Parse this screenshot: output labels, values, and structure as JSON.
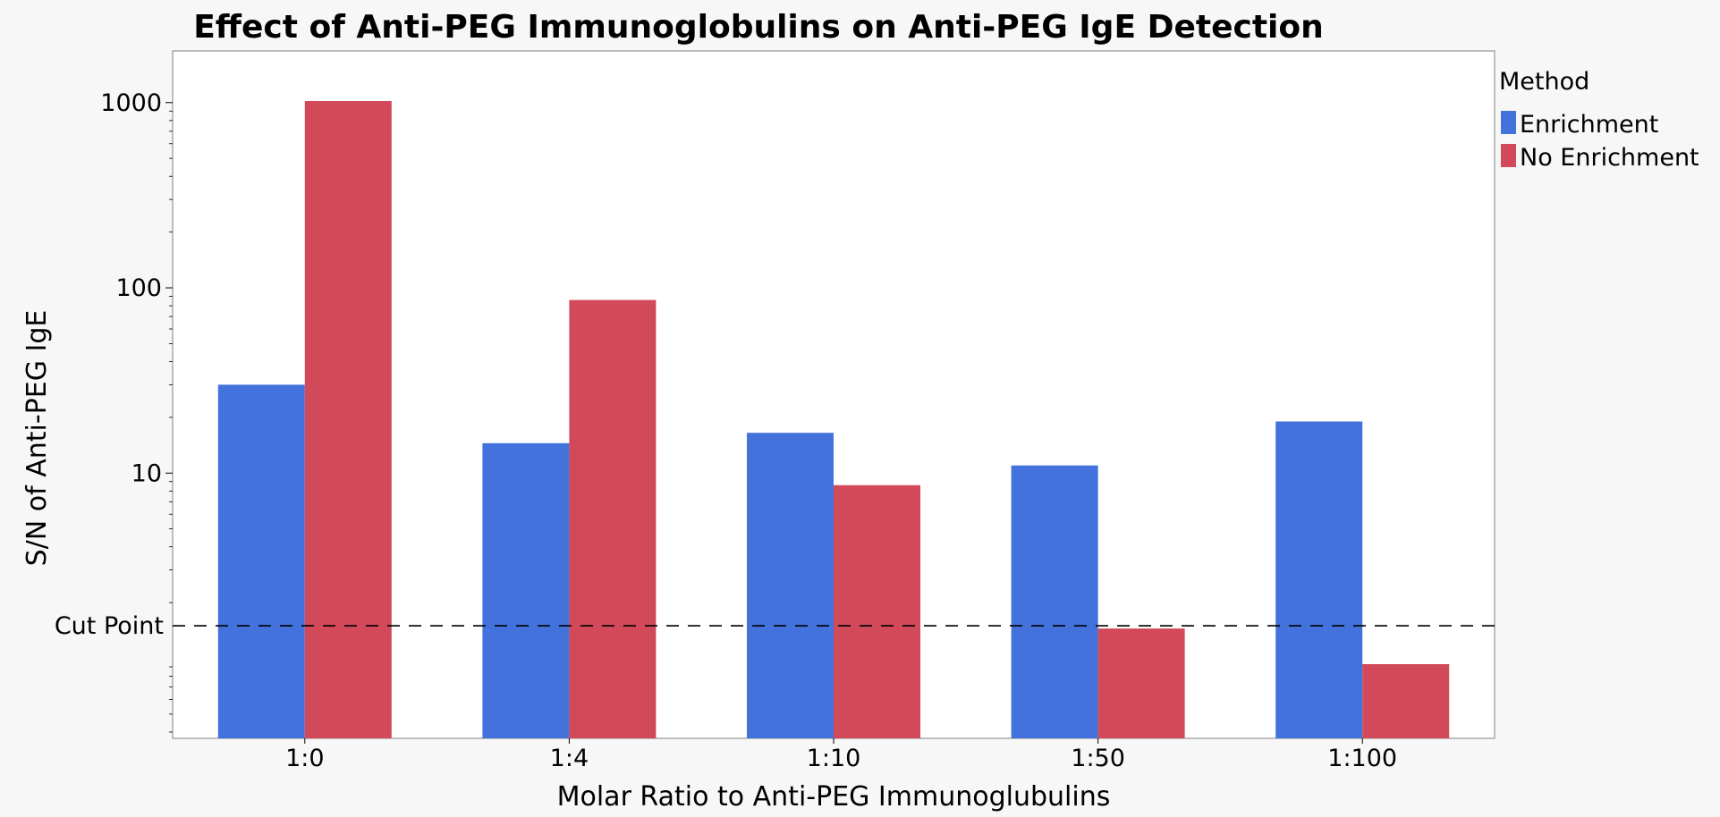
{
  "chart_data": {
    "type": "bar",
    "title": "Effect of Anti-PEG Immunoglobulins on Anti-PEG IgE Detection",
    "xlabel": "Molar Ratio to Anti-PEG Immunoglubulins",
    "ylabel": "S/N of Anti-PEG IgE",
    "categories": [
      "1:0",
      "1:4",
      "1:10",
      "1:50",
      "1:100"
    ],
    "series": [
      {
        "name": "Enrichment",
        "color": "#4472dc",
        "values": [
          30,
          14.5,
          16.5,
          11,
          19
        ]
      },
      {
        "name": "No Enrichment",
        "color": "#d24a5a",
        "values": [
          1020,
          86,
          8.6,
          1.45,
          0.93
        ]
      }
    ],
    "y_scale": "log",
    "ylim": [
      0.37,
      1900
    ],
    "y_ticks": [
      {
        "value": 10,
        "label": "10"
      },
      {
        "value": 100,
        "label": "100"
      },
      {
        "value": 1000,
        "label": "1000"
      }
    ],
    "reference_line": {
      "value": 1.5,
      "label": "Cut Point",
      "style": "dashed"
    },
    "legend": {
      "title": "Method",
      "placement": "right"
    },
    "grid": false
  }
}
